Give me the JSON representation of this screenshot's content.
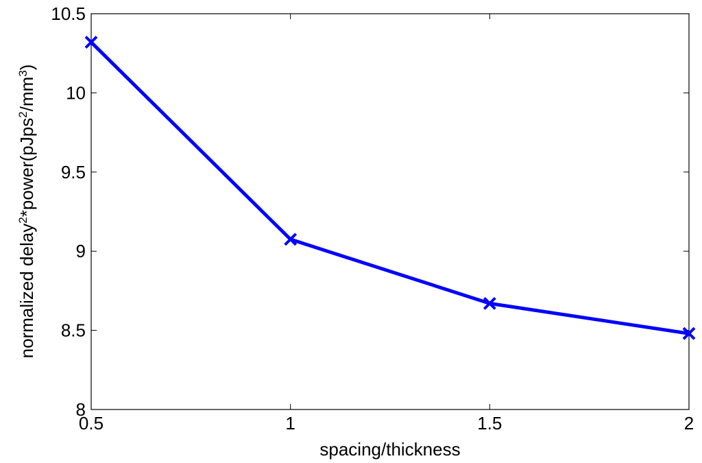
{
  "chart_data": {
    "type": "line",
    "title": "",
    "xlabel": "spacing/thickness",
    "ylabel": {
      "parts": [
        {
          "text": "normalized delay",
          "sup": false
        },
        {
          "text": "2",
          "sup": true
        },
        {
          "text": "*power(pJps",
          "sup": false
        },
        {
          "text": "2",
          "sup": true
        },
        {
          "text": "/mm",
          "sup": false
        },
        {
          "text": "3",
          "sup": true
        },
        {
          "text": ")",
          "sup": false
        }
      ]
    },
    "xlim": [
      0.5,
      2
    ],
    "ylim": [
      8,
      10.5
    ],
    "xticks": [
      0.5,
      1,
      1.5,
      2
    ],
    "xtick_labels": [
      "0.5",
      "1",
      "1.5",
      "2"
    ],
    "yticks": [
      8,
      8.5,
      9,
      9.5,
      10,
      10.5
    ],
    "ytick_labels": [
      "8",
      "8.5",
      "9",
      "9.5",
      "10",
      "10.5"
    ],
    "grid": false,
    "series": [
      {
        "x": [
          0.5,
          1,
          1.5,
          2
        ],
        "y": [
          10.32,
          9.075,
          8.67,
          8.48
        ],
        "color": "#0000ff",
        "marker": "x"
      }
    ]
  }
}
